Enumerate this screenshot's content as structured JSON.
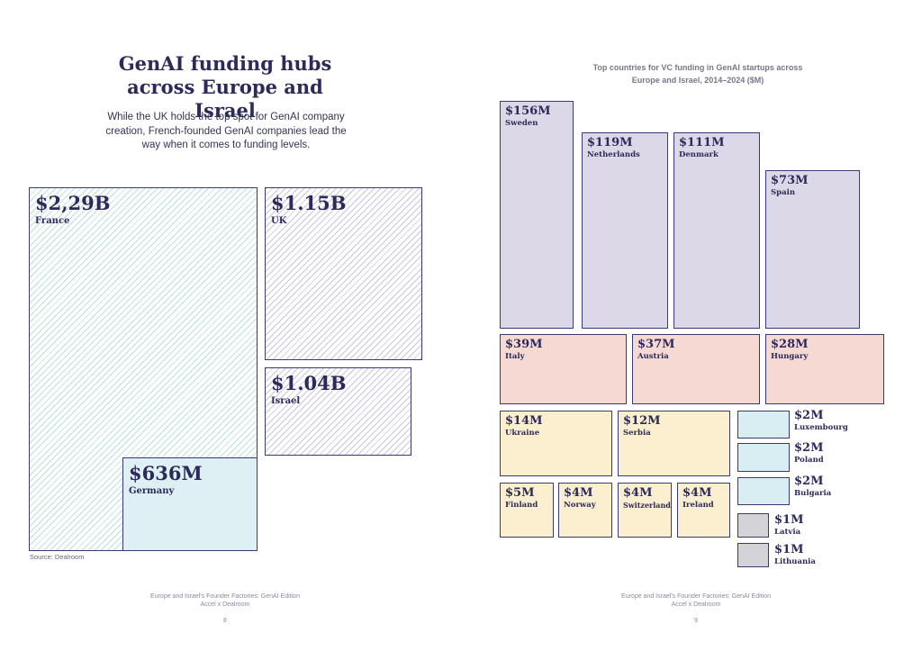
{
  "left_page": {
    "title_line1": "GenAI funding hubs",
    "title_line2": "across Europe and Israel",
    "subtitle": "While the UK holds the top spot for GenAI company creation, French-founded GenAI companies lead the way when it comes to funding levels.",
    "source": "Source: Dealroom",
    "footer_line1": "Europe and Israel's Founder Factories: GenAI Edition",
    "footer_line2": "Accel x Dealroom",
    "page_number": "8"
  },
  "right_page": {
    "chart_title_line1": "Top countries for VC funding in GenAI startups across",
    "chart_title_line2": "Europe and Israel, 2014–2024 ($M)",
    "footer_line1": "Europe and Israel's Founder Factories: GenAI Edition",
    "footer_line2": "Accel x Dealroom",
    "page_number": "9"
  },
  "colors": {
    "navy": "#2b2a5a",
    "purple_fill": "#dcd8e8",
    "pink_fill": "#f7d9d4",
    "yellow_fill": "#fbefcf",
    "blue_fill": "#d8eef2",
    "grey_fill": "#d4d4d8"
  },
  "chart_data": [
    {
      "type": "treemap",
      "title": "GenAI funding hubs across Europe and Israel",
      "items": [
        {
          "country": "France",
          "label": "$2,29B",
          "value_musd": 2290
        },
        {
          "country": "UK",
          "label": "$1.15B",
          "value_musd": 1150
        },
        {
          "country": "Israel",
          "label": "$1.04B",
          "value_musd": 1040
        },
        {
          "country": "Germany",
          "label": "$636M",
          "value_musd": 636
        }
      ]
    },
    {
      "type": "treemap",
      "title": "Top countries for VC funding in GenAI startups across Europe and Israel, 2014–2024 ($M)",
      "items": [
        {
          "country": "Sweden",
          "label": "$156M",
          "value_musd": 156,
          "tier": "purple"
        },
        {
          "country": "Netherlands",
          "label": "$119M",
          "value_musd": 119,
          "tier": "purple"
        },
        {
          "country": "Denmark",
          "label": "$111M",
          "value_musd": 111,
          "tier": "purple"
        },
        {
          "country": "Spain",
          "label": "$73M",
          "value_musd": 73,
          "tier": "purple"
        },
        {
          "country": "Italy",
          "label": "$39M",
          "value_musd": 39,
          "tier": "pink"
        },
        {
          "country": "Austria",
          "label": "$37M",
          "value_musd": 37,
          "tier": "pink"
        },
        {
          "country": "Hungary",
          "label": "$28M",
          "value_musd": 28,
          "tier": "pink"
        },
        {
          "country": "Ukraine",
          "label": "$14M",
          "value_musd": 14,
          "tier": "yellow"
        },
        {
          "country": "Serbia",
          "label": "$12M",
          "value_musd": 12,
          "tier": "yellow"
        },
        {
          "country": "Finland",
          "label": "$5M",
          "value_musd": 5,
          "tier": "yellow"
        },
        {
          "country": "Norway",
          "label": "$4M",
          "value_musd": 4,
          "tier": "yellow"
        },
        {
          "country": "Switzerland",
          "label": "$4M",
          "value_musd": 4,
          "tier": "yellow"
        },
        {
          "country": "Ireland",
          "label": "$4M",
          "value_musd": 4,
          "tier": "yellow"
        },
        {
          "country": "Luxembourg",
          "label": "$2M",
          "value_musd": 2,
          "tier": "blue"
        },
        {
          "country": "Poland",
          "label": "$2M",
          "value_musd": 2,
          "tier": "blue"
        },
        {
          "country": "Bulgaria",
          "label": "$2M",
          "value_musd": 2,
          "tier": "blue"
        },
        {
          "country": "Latvia",
          "label": "$1M",
          "value_musd": 1,
          "tier": "grey"
        },
        {
          "country": "Lithuania",
          "label": "$1M",
          "value_musd": 1,
          "tier": "grey"
        }
      ]
    }
  ]
}
